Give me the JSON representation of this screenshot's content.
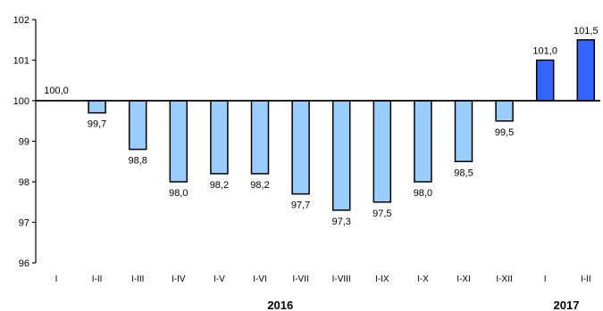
{
  "chart_data": {
    "type": "bar",
    "baseline": 100,
    "ylim": [
      96,
      102
    ],
    "yticks": [
      "96",
      "97",
      "98",
      "99",
      "100",
      "101",
      "102"
    ],
    "categories": [
      "I",
      "I-II",
      "I-III",
      "I-IV",
      "I-V",
      "I-VI",
      "I-VII",
      "I-VIII",
      "I-IX",
      "I-X",
      "I-XI",
      "I-XII",
      "I",
      "I-II"
    ],
    "values": [
      100.0,
      99.7,
      98.8,
      98.0,
      98.2,
      98.2,
      97.7,
      97.3,
      97.5,
      98.0,
      98.5,
      99.5,
      101.0,
      101.5
    ],
    "value_labels": [
      "100,0",
      "99,7",
      "98,8",
      "98,0",
      "98,2",
      "98,2",
      "97,7",
      "97,3",
      "97,5",
      "98,0",
      "98,5",
      "99,5",
      "101,0",
      "101,5"
    ],
    "year_groups": [
      {
        "label": "2016",
        "from": 0,
        "to": 11
      },
      {
        "label": "2017",
        "from": 12,
        "to": 13
      }
    ],
    "colors": {
      "2016": "#99ccff",
      "2017": "#3366ff",
      "outline": "#000000"
    },
    "grid": false,
    "title": "",
    "xlabel": "",
    "ylabel": ""
  }
}
